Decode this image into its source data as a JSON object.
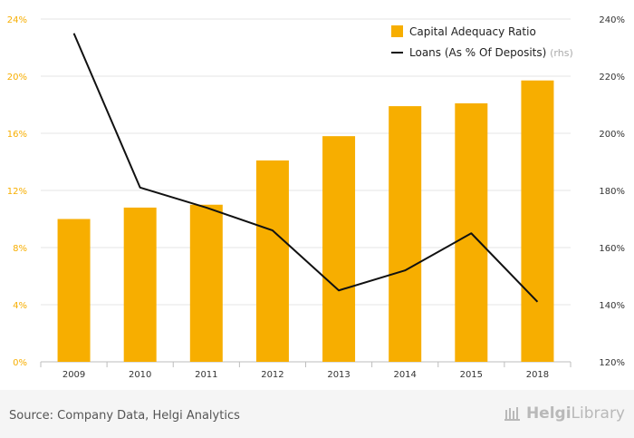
{
  "chart_data": {
    "type": "bar",
    "categories": [
      "2009",
      "2010",
      "2011",
      "2012",
      "2013",
      "2014",
      "2015",
      "2018"
    ],
    "series": [
      {
        "name": "Capital Adequacy Ratio",
        "type": "bar",
        "axis": "left",
        "color": "#f7ae00",
        "values": [
          10.0,
          10.8,
          11.0,
          14.1,
          15.8,
          17.9,
          18.1,
          19.7
        ]
      },
      {
        "name": "Loans (As % Of Deposits)",
        "suffix": "(rhs)",
        "type": "line",
        "axis": "right",
        "color": "#111111",
        "values": [
          235,
          181,
          174,
          166,
          145,
          152,
          165,
          141
        ]
      }
    ],
    "y_left": {
      "min": 0,
      "max": 24,
      "ticks": [
        "0%",
        "4%",
        "8%",
        "12%",
        "16%",
        "20%",
        "24%"
      ],
      "tick_values": [
        0,
        4,
        8,
        12,
        16,
        20,
        24
      ],
      "color": "#f7ae00"
    },
    "y_right": {
      "min": 120,
      "max": 240,
      "ticks": [
        "120%",
        "140%",
        "160%",
        "180%",
        "200%",
        "220%",
        "240%"
      ],
      "tick_values": [
        120,
        140,
        160,
        180,
        200,
        220,
        240
      ],
      "color": "#333333"
    },
    "grid": true,
    "legend_position": "top-right"
  },
  "footer": {
    "source": "Source: Company Data, Helgi Analytics",
    "brand_prefix": "Helgi",
    "brand_suffix": "Library"
  }
}
